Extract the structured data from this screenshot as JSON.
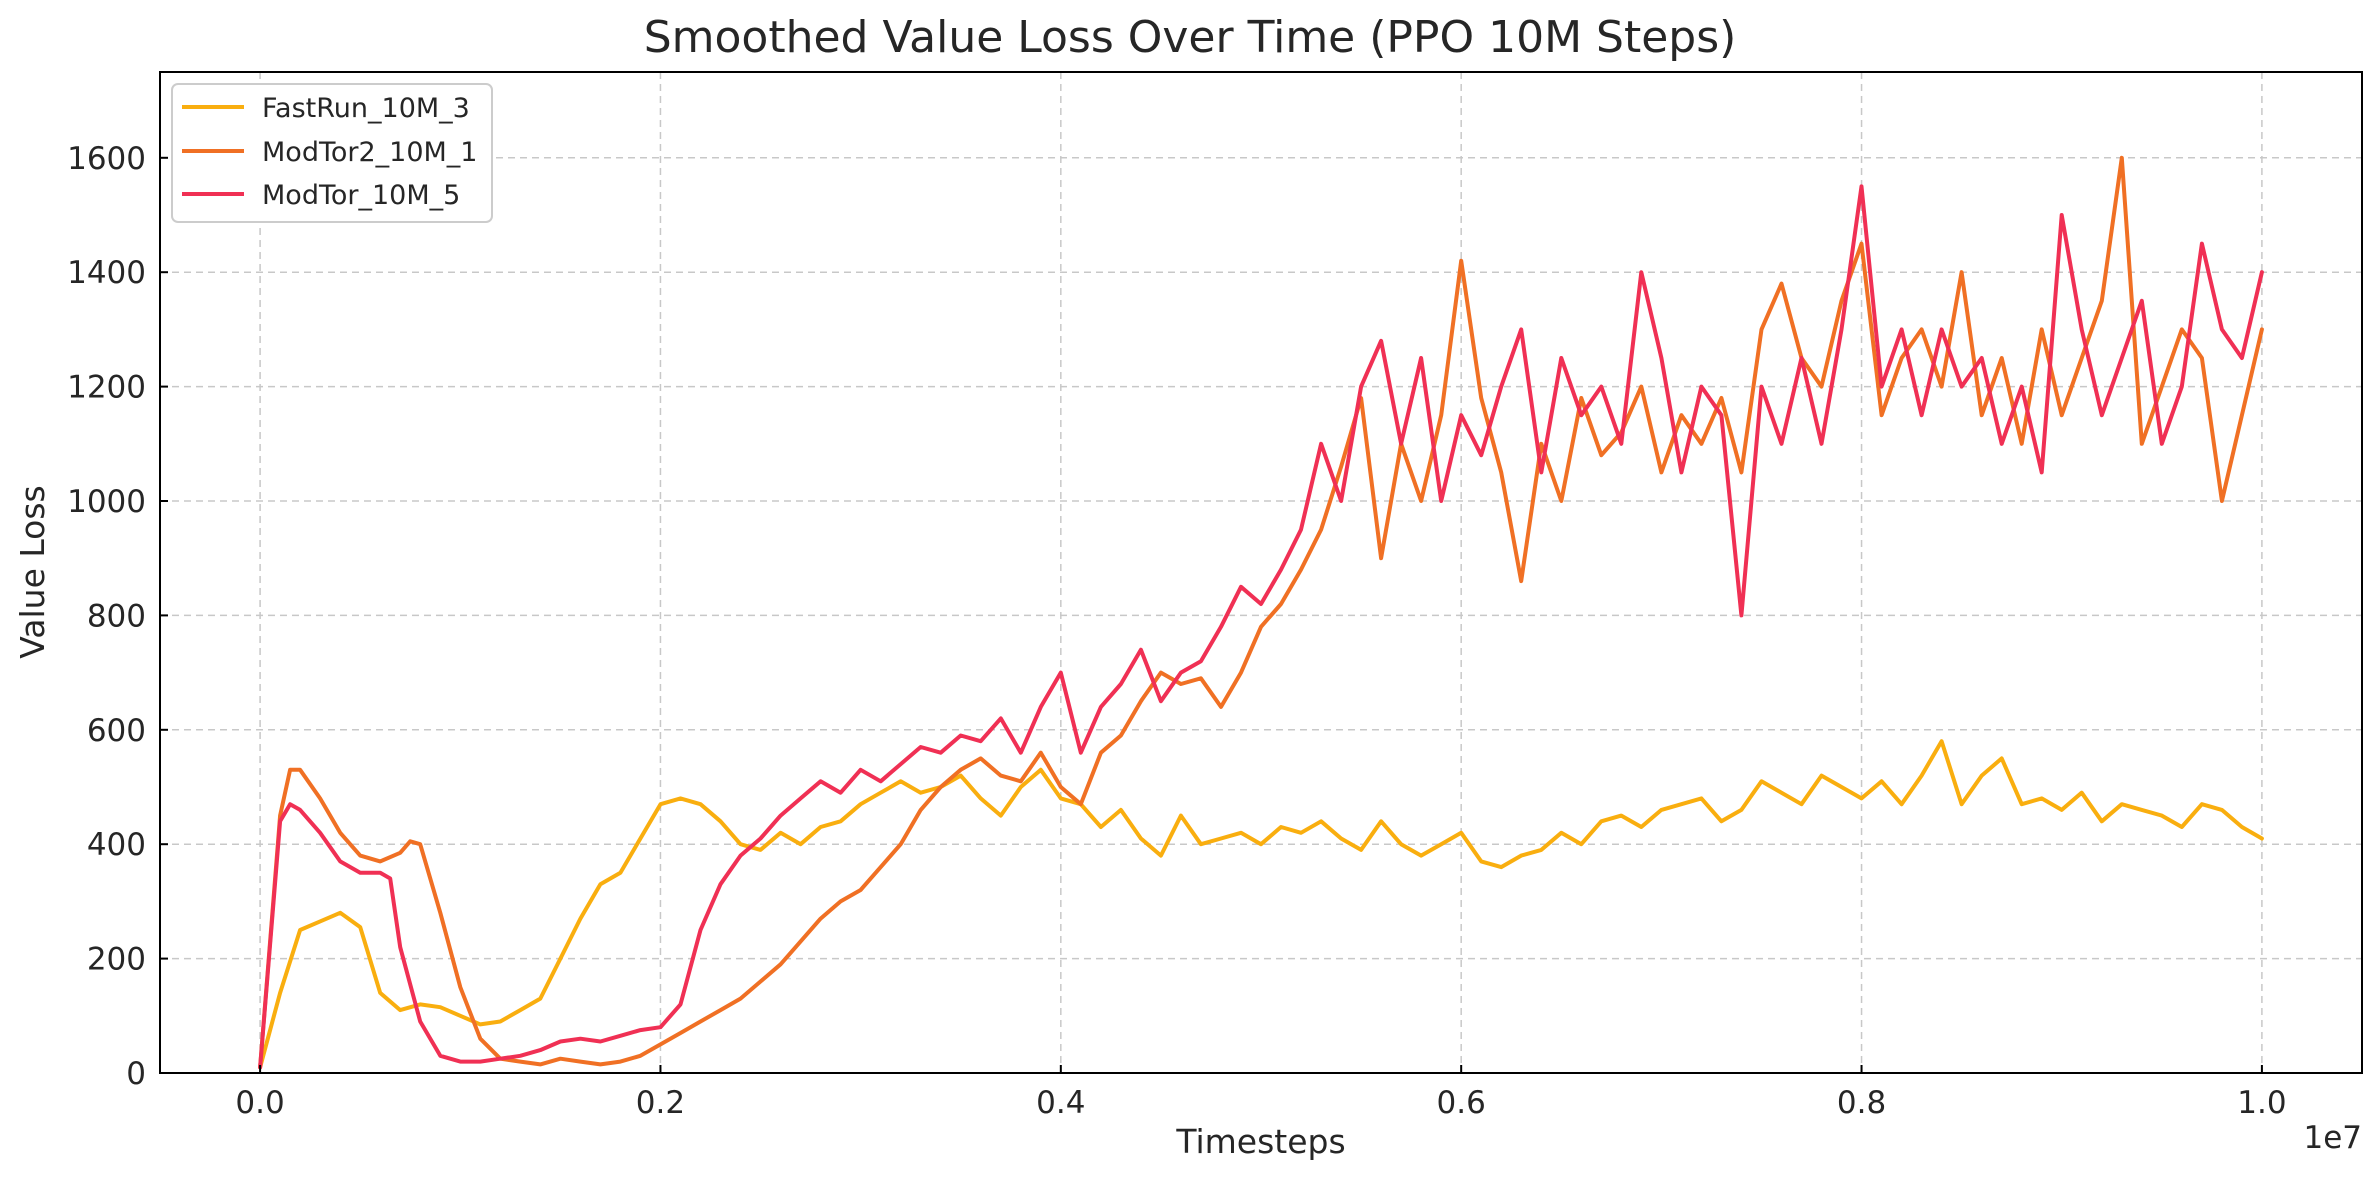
{
  "chart_data": {
    "type": "line",
    "title": "Smoothed Value Loss Over Time (PPO 10M Steps)",
    "xlabel": "Timesteps",
    "ylabel": "Value Loss",
    "x_offset_label": "1e7",
    "xlim": [
      -0.05,
      1.05
    ],
    "ylim": [
      0,
      1750
    ],
    "xticks": [
      0.0,
      0.2,
      0.4,
      0.6,
      0.8,
      1.0
    ],
    "xtick_labels": [
      "0.0",
      "0.2",
      "0.4",
      "0.6",
      "0.8",
      "1.0"
    ],
    "yticks": [
      0,
      200,
      400,
      600,
      800,
      1000,
      1200,
      1400,
      1600
    ],
    "ytick_labels": [
      "0",
      "200",
      "400",
      "600",
      "800",
      "1000",
      "1200",
      "1400",
      "1600"
    ],
    "grid": true,
    "legend_position": "top-left",
    "series": [
      {
        "name": "FastRun_10M_3",
        "color": "#F9AE0F",
        "points": [
          [
            0.0,
            10
          ],
          [
            0.01,
            140
          ],
          [
            0.02,
            250
          ],
          [
            0.03,
            265
          ],
          [
            0.04,
            280
          ],
          [
            0.05,
            255
          ],
          [
            0.06,
            140
          ],
          [
            0.07,
            110
          ],
          [
            0.08,
            120
          ],
          [
            0.09,
            115
          ],
          [
            0.1,
            100
          ],
          [
            0.11,
            85
          ],
          [
            0.12,
            90
          ],
          [
            0.13,
            110
          ],
          [
            0.14,
            130
          ],
          [
            0.15,
            200
          ],
          [
            0.16,
            270
          ],
          [
            0.17,
            330
          ],
          [
            0.18,
            350
          ],
          [
            0.19,
            410
          ],
          [
            0.2,
            470
          ],
          [
            0.21,
            480
          ],
          [
            0.22,
            470
          ],
          [
            0.23,
            440
          ],
          [
            0.24,
            400
          ],
          [
            0.25,
            390
          ],
          [
            0.26,
            420
          ],
          [
            0.27,
            400
          ],
          [
            0.28,
            430
          ],
          [
            0.29,
            440
          ],
          [
            0.3,
            470
          ],
          [
            0.31,
            490
          ],
          [
            0.32,
            510
          ],
          [
            0.33,
            490
          ],
          [
            0.34,
            500
          ],
          [
            0.35,
            520
          ],
          [
            0.36,
            480
          ],
          [
            0.37,
            450
          ],
          [
            0.38,
            500
          ],
          [
            0.39,
            530
          ],
          [
            0.4,
            480
          ],
          [
            0.41,
            470
          ],
          [
            0.42,
            430
          ],
          [
            0.43,
            460
          ],
          [
            0.44,
            410
          ],
          [
            0.45,
            380
          ],
          [
            0.46,
            450
          ],
          [
            0.47,
            400
          ],
          [
            0.48,
            410
          ],
          [
            0.49,
            420
          ],
          [
            0.5,
            400
          ],
          [
            0.51,
            430
          ],
          [
            0.52,
            420
          ],
          [
            0.53,
            440
          ],
          [
            0.54,
            410
          ],
          [
            0.55,
            390
          ],
          [
            0.56,
            440
          ],
          [
            0.57,
            400
          ],
          [
            0.58,
            380
          ],
          [
            0.59,
            400
          ],
          [
            0.6,
            420
          ],
          [
            0.61,
            370
          ],
          [
            0.62,
            360
          ],
          [
            0.63,
            380
          ],
          [
            0.64,
            390
          ],
          [
            0.65,
            420
          ],
          [
            0.66,
            400
          ],
          [
            0.67,
            440
          ],
          [
            0.68,
            450
          ],
          [
            0.69,
            430
          ],
          [
            0.7,
            460
          ],
          [
            0.71,
            470
          ],
          [
            0.72,
            480
          ],
          [
            0.73,
            440
          ],
          [
            0.74,
            460
          ],
          [
            0.75,
            510
          ],
          [
            0.76,
            490
          ],
          [
            0.77,
            470
          ],
          [
            0.78,
            520
          ],
          [
            0.79,
            500
          ],
          [
            0.8,
            480
          ],
          [
            0.81,
            510
          ],
          [
            0.82,
            470
          ],
          [
            0.83,
            520
          ],
          [
            0.84,
            580
          ],
          [
            0.85,
            470
          ],
          [
            0.86,
            520
          ],
          [
            0.87,
            550
          ],
          [
            0.88,
            470
          ],
          [
            0.89,
            480
          ],
          [
            0.9,
            460
          ],
          [
            0.91,
            490
          ],
          [
            0.92,
            440
          ],
          [
            0.93,
            470
          ],
          [
            0.94,
            460
          ],
          [
            0.95,
            450
          ],
          [
            0.96,
            430
          ],
          [
            0.97,
            470
          ],
          [
            0.98,
            460
          ],
          [
            0.99,
            430
          ],
          [
            1.0,
            410
          ]
        ]
      },
      {
        "name": "ModTor2_10M_1",
        "color": "#F07024",
        "points": [
          [
            0.0,
            10
          ],
          [
            0.01,
            450
          ],
          [
            0.015,
            530
          ],
          [
            0.02,
            530
          ],
          [
            0.03,
            480
          ],
          [
            0.04,
            420
          ],
          [
            0.05,
            380
          ],
          [
            0.06,
            370
          ],
          [
            0.07,
            385
          ],
          [
            0.075,
            405
          ],
          [
            0.08,
            400
          ],
          [
            0.09,
            280
          ],
          [
            0.1,
            150
          ],
          [
            0.11,
            60
          ],
          [
            0.12,
            25
          ],
          [
            0.13,
            20
          ],
          [
            0.14,
            15
          ],
          [
            0.15,
            25
          ],
          [
            0.16,
            20
          ],
          [
            0.17,
            15
          ],
          [
            0.18,
            20
          ],
          [
            0.19,
            30
          ],
          [
            0.2,
            50
          ],
          [
            0.21,
            70
          ],
          [
            0.22,
            90
          ],
          [
            0.23,
            110
          ],
          [
            0.24,
            130
          ],
          [
            0.25,
            160
          ],
          [
            0.26,
            190
          ],
          [
            0.27,
            230
          ],
          [
            0.28,
            270
          ],
          [
            0.29,
            300
          ],
          [
            0.3,
            320
          ],
          [
            0.31,
            360
          ],
          [
            0.32,
            400
          ],
          [
            0.33,
            460
          ],
          [
            0.34,
            500
          ],
          [
            0.35,
            530
          ],
          [
            0.36,
            550
          ],
          [
            0.37,
            520
          ],
          [
            0.38,
            510
          ],
          [
            0.39,
            560
          ],
          [
            0.4,
            500
          ],
          [
            0.41,
            470
          ],
          [
            0.42,
            560
          ],
          [
            0.43,
            590
          ],
          [
            0.44,
            650
          ],
          [
            0.45,
            700
          ],
          [
            0.46,
            680
          ],
          [
            0.47,
            690
          ],
          [
            0.48,
            640
          ],
          [
            0.49,
            700
          ],
          [
            0.5,
            780
          ],
          [
            0.51,
            820
          ],
          [
            0.52,
            880
          ],
          [
            0.53,
            950
          ],
          [
            0.54,
            1060
          ],
          [
            0.55,
            1180
          ],
          [
            0.56,
            900
          ],
          [
            0.57,
            1100
          ],
          [
            0.58,
            1000
          ],
          [
            0.59,
            1150
          ],
          [
            0.6,
            1420
          ],
          [
            0.61,
            1180
          ],
          [
            0.62,
            1050
          ],
          [
            0.63,
            860
          ],
          [
            0.64,
            1100
          ],
          [
            0.65,
            1000
          ],
          [
            0.66,
            1180
          ],
          [
            0.67,
            1080
          ],
          [
            0.68,
            1120
          ],
          [
            0.69,
            1200
          ],
          [
            0.7,
            1050
          ],
          [
            0.71,
            1150
          ],
          [
            0.72,
            1100
          ],
          [
            0.73,
            1180
          ],
          [
            0.74,
            1050
          ],
          [
            0.75,
            1300
          ],
          [
            0.76,
            1380
          ],
          [
            0.77,
            1250
          ],
          [
            0.78,
            1200
          ],
          [
            0.79,
            1350
          ],
          [
            0.8,
            1450
          ],
          [
            0.81,
            1150
          ],
          [
            0.82,
            1250
          ],
          [
            0.83,
            1300
          ],
          [
            0.84,
            1200
          ],
          [
            0.85,
            1400
          ],
          [
            0.86,
            1150
          ],
          [
            0.87,
            1250
          ],
          [
            0.88,
            1100
          ],
          [
            0.89,
            1300
          ],
          [
            0.9,
            1150
          ],
          [
            0.91,
            1250
          ],
          [
            0.92,
            1350
          ],
          [
            0.93,
            1600
          ],
          [
            0.94,
            1100
          ],
          [
            0.95,
            1200
          ],
          [
            0.96,
            1300
          ],
          [
            0.97,
            1250
          ],
          [
            0.98,
            1000
          ],
          [
            0.99,
            1150
          ],
          [
            1.0,
            1300
          ]
        ]
      },
      {
        "name": "ModTor_10M_5",
        "color": "#F03054",
        "points": [
          [
            0.0,
            10
          ],
          [
            0.01,
            440
          ],
          [
            0.015,
            470
          ],
          [
            0.02,
            460
          ],
          [
            0.03,
            420
          ],
          [
            0.04,
            370
          ],
          [
            0.05,
            350
          ],
          [
            0.06,
            350
          ],
          [
            0.065,
            340
          ],
          [
            0.07,
            220
          ],
          [
            0.08,
            90
          ],
          [
            0.09,
            30
          ],
          [
            0.1,
            20
          ],
          [
            0.11,
            20
          ],
          [
            0.12,
            25
          ],
          [
            0.13,
            30
          ],
          [
            0.14,
            40
          ],
          [
            0.15,
            55
          ],
          [
            0.16,
            60
          ],
          [
            0.17,
            55
          ],
          [
            0.18,
            65
          ],
          [
            0.19,
            75
          ],
          [
            0.2,
            80
          ],
          [
            0.21,
            120
          ],
          [
            0.22,
            250
          ],
          [
            0.23,
            330
          ],
          [
            0.24,
            380
          ],
          [
            0.25,
            410
          ],
          [
            0.26,
            450
          ],
          [
            0.27,
            480
          ],
          [
            0.28,
            510
          ],
          [
            0.29,
            490
          ],
          [
            0.3,
            530
          ],
          [
            0.31,
            510
          ],
          [
            0.32,
            540
          ],
          [
            0.33,
            570
          ],
          [
            0.34,
            560
          ],
          [
            0.35,
            590
          ],
          [
            0.36,
            580
          ],
          [
            0.37,
            620
          ],
          [
            0.38,
            560
          ],
          [
            0.39,
            640
          ],
          [
            0.4,
            700
          ],
          [
            0.41,
            560
          ],
          [
            0.42,
            640
          ],
          [
            0.43,
            680
          ],
          [
            0.44,
            740
          ],
          [
            0.45,
            650
          ],
          [
            0.46,
            700
          ],
          [
            0.47,
            720
          ],
          [
            0.48,
            780
          ],
          [
            0.49,
            850
          ],
          [
            0.5,
            820
          ],
          [
            0.51,
            880
          ],
          [
            0.52,
            950
          ],
          [
            0.53,
            1100
          ],
          [
            0.54,
            1000
          ],
          [
            0.55,
            1200
          ],
          [
            0.56,
            1280
          ],
          [
            0.57,
            1100
          ],
          [
            0.58,
            1250
          ],
          [
            0.59,
            1000
          ],
          [
            0.6,
            1150
          ],
          [
            0.61,
            1080
          ],
          [
            0.62,
            1200
          ],
          [
            0.63,
            1300
          ],
          [
            0.64,
            1050
          ],
          [
            0.65,
            1250
          ],
          [
            0.66,
            1150
          ],
          [
            0.67,
            1200
          ],
          [
            0.68,
            1100
          ],
          [
            0.69,
            1400
          ],
          [
            0.7,
            1250
          ],
          [
            0.71,
            1050
          ],
          [
            0.72,
            1200
          ],
          [
            0.73,
            1150
          ],
          [
            0.74,
            800
          ],
          [
            0.75,
            1200
          ],
          [
            0.76,
            1100
          ],
          [
            0.77,
            1250
          ],
          [
            0.78,
            1100
          ],
          [
            0.79,
            1300
          ],
          [
            0.8,
            1550
          ],
          [
            0.81,
            1200
          ],
          [
            0.82,
            1300
          ],
          [
            0.83,
            1150
          ],
          [
            0.84,
            1300
          ],
          [
            0.85,
            1200
          ],
          [
            0.86,
            1250
          ],
          [
            0.87,
            1100
          ],
          [
            0.88,
            1200
          ],
          [
            0.89,
            1050
          ],
          [
            0.9,
            1500
          ],
          [
            0.91,
            1300
          ],
          [
            0.92,
            1150
          ],
          [
            0.93,
            1250
          ],
          [
            0.94,
            1350
          ],
          [
            0.95,
            1100
          ],
          [
            0.96,
            1200
          ],
          [
            0.97,
            1450
          ],
          [
            0.98,
            1300
          ],
          [
            0.99,
            1250
          ],
          [
            1.0,
            1400
          ]
        ]
      }
    ]
  }
}
